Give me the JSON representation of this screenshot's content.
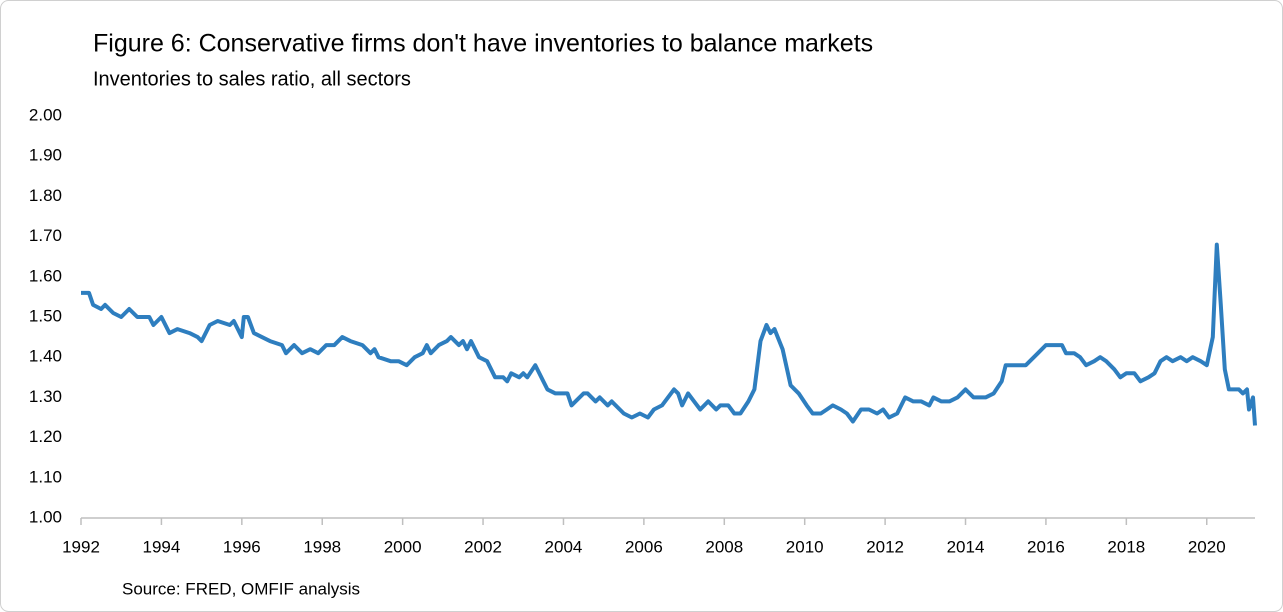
{
  "chart_data": {
    "type": "line",
    "title": "Figure 6: Conservative firms don't have inventories to balance markets",
    "subtitle": "Inventories to sales ratio, all sectors",
    "source": "Source: FRED, OMFIF analysis",
    "color": "#2e7ebf",
    "xlim": [
      1992,
      2021.2
    ],
    "xticks": [
      1992,
      1994,
      1996,
      1998,
      2000,
      2002,
      2004,
      2006,
      2008,
      2010,
      2012,
      2014,
      2016,
      2018,
      2020
    ],
    "ylim": [
      1.0,
      2.0
    ],
    "yticks": [
      {
        "value": 1.0,
        "label": "1.00"
      },
      {
        "value": 1.1,
        "label": "1.10"
      },
      {
        "value": 1.2,
        "label": "1.20"
      },
      {
        "value": 1.3,
        "label": "1.30"
      },
      {
        "value": 1.4,
        "label": "1.40"
      },
      {
        "value": 1.5,
        "label": "1.50"
      },
      {
        "value": 1.6,
        "label": "1.60"
      },
      {
        "value": 1.7,
        "label": "1.70"
      },
      {
        "value": 1.8,
        "label": "1.80"
      },
      {
        "value": 1.9,
        "label": "1.90"
      },
      {
        "value": 2.0,
        "label": "2.00"
      }
    ],
    "grid": false,
    "x": [
      1992.0,
      1992.2,
      1992.3,
      1992.5,
      1992.6,
      1992.8,
      1993.0,
      1993.2,
      1993.4,
      1993.7,
      1993.8,
      1994.0,
      1994.2,
      1994.4,
      1994.7,
      1994.9,
      1995.0,
      1995.2,
      1995.4,
      1995.7,
      1995.8,
      1996.0,
      1996.05,
      1996.15,
      1996.3,
      1996.5,
      1996.7,
      1997.0,
      1997.1,
      1997.3,
      1997.5,
      1997.7,
      1997.9,
      1998.1,
      1998.3,
      1998.5,
      1998.7,
      1999.0,
      1999.2,
      1999.3,
      1999.4,
      1999.7,
      1999.9,
      2000.1,
      2000.3,
      2000.5,
      2000.6,
      2000.7,
      2000.9,
      2001.1,
      2001.2,
      2001.4,
      2001.5,
      2001.6,
      2001.7,
      2001.9,
      2002.1,
      2002.3,
      2002.5,
      2002.6,
      2002.7,
      2002.9,
      2003.0,
      2003.1,
      2003.3,
      2003.4,
      2003.6,
      2003.8,
      2004.1,
      2004.2,
      2004.3,
      2004.5,
      2004.6,
      2004.8,
      2004.9,
      2005.1,
      2005.2,
      2005.4,
      2005.5,
      2005.7,
      2005.9,
      2006.1,
      2006.25,
      2006.45,
      2006.6,
      2006.75,
      2006.85,
      2006.95,
      2007.1,
      2007.25,
      2007.4,
      2007.6,
      2007.8,
      2007.9,
      2008.1,
      2008.25,
      2008.4,
      2008.6,
      2008.75,
      2008.9,
      2009.05,
      2009.15,
      2009.25,
      2009.45,
      2009.65,
      2009.85,
      2010.05,
      2010.2,
      2010.4,
      2010.55,
      2010.7,
      2010.9,
      2011.05,
      2011.2,
      2011.4,
      2011.6,
      2011.8,
      2011.95,
      2012.1,
      2012.3,
      2012.5,
      2012.7,
      2012.9,
      2013.1,
      2013.2,
      2013.4,
      2013.6,
      2013.8,
      2014.0,
      2014.2,
      2014.5,
      2014.7,
      2014.9,
      2015.0,
      2015.3,
      2015.5,
      2015.8,
      2016.0,
      2016.25,
      2016.4,
      2016.5,
      2016.7,
      2016.85,
      2017.0,
      2017.2,
      2017.35,
      2017.5,
      2017.7,
      2017.85,
      2018.0,
      2018.2,
      2018.35,
      2018.55,
      2018.7,
      2018.85,
      2019.0,
      2019.15,
      2019.35,
      2019.5,
      2019.65,
      2019.85,
      2020.0,
      2020.15,
      2020.25,
      2020.35,
      2020.45,
      2020.55,
      2020.8,
      2020.9,
      2021.0,
      2021.05,
      2021.15,
      2021.2
    ],
    "values": [
      1.56,
      1.56,
      1.53,
      1.52,
      1.53,
      1.51,
      1.5,
      1.52,
      1.5,
      1.5,
      1.48,
      1.5,
      1.46,
      1.47,
      1.46,
      1.45,
      1.44,
      1.48,
      1.49,
      1.48,
      1.49,
      1.45,
      1.5,
      1.5,
      1.46,
      1.45,
      1.44,
      1.43,
      1.41,
      1.43,
      1.41,
      1.42,
      1.41,
      1.43,
      1.43,
      1.45,
      1.44,
      1.43,
      1.41,
      1.42,
      1.4,
      1.39,
      1.39,
      1.38,
      1.4,
      1.41,
      1.43,
      1.41,
      1.43,
      1.44,
      1.45,
      1.43,
      1.44,
      1.42,
      1.44,
      1.4,
      1.39,
      1.35,
      1.35,
      1.34,
      1.36,
      1.35,
      1.36,
      1.35,
      1.38,
      1.36,
      1.32,
      1.31,
      1.31,
      1.28,
      1.29,
      1.31,
      1.31,
      1.29,
      1.3,
      1.28,
      1.29,
      1.27,
      1.26,
      1.25,
      1.26,
      1.25,
      1.27,
      1.28,
      1.3,
      1.32,
      1.31,
      1.28,
      1.31,
      1.29,
      1.27,
      1.29,
      1.27,
      1.28,
      1.28,
      1.26,
      1.26,
      1.29,
      1.32,
      1.44,
      1.48,
      1.46,
      1.47,
      1.42,
      1.33,
      1.31,
      1.28,
      1.26,
      1.26,
      1.27,
      1.28,
      1.27,
      1.26,
      1.24,
      1.27,
      1.27,
      1.26,
      1.27,
      1.25,
      1.26,
      1.3,
      1.29,
      1.29,
      1.28,
      1.3,
      1.29,
      1.29,
      1.3,
      1.32,
      1.3,
      1.3,
      1.31,
      1.34,
      1.38,
      1.38,
      1.38,
      1.41,
      1.43,
      1.43,
      1.43,
      1.41,
      1.41,
      1.4,
      1.38,
      1.39,
      1.4,
      1.39,
      1.37,
      1.35,
      1.36,
      1.36,
      1.34,
      1.35,
      1.36,
      1.39,
      1.4,
      1.39,
      1.4,
      1.39,
      1.4,
      1.39,
      1.38,
      1.45,
      1.68,
      1.53,
      1.37,
      1.32,
      1.32,
      1.31,
      1.32,
      1.27,
      1.3,
      1.23
    ]
  }
}
